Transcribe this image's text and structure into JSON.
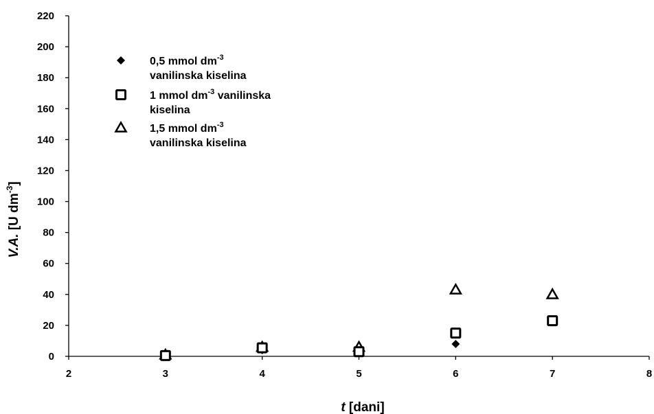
{
  "chart_data": {
    "type": "scatter",
    "xlabel": {
      "italic": "t",
      "rest": " [dani]"
    },
    "ylabel": {
      "italic": "V.A.",
      "rest": " [U dm",
      "sup": "-3",
      "close": "]"
    },
    "xlim": [
      2,
      8
    ],
    "ylim": [
      0,
      220
    ],
    "xticks": [
      2,
      3,
      4,
      5,
      6,
      7,
      8
    ],
    "yticks": [
      0,
      20,
      40,
      60,
      80,
      100,
      120,
      140,
      160,
      180,
      200,
      220
    ],
    "grid": false,
    "legend_position": "top-left",
    "series": [
      {
        "name": "0,5 mmol dm-3 vanilinska kiselina",
        "marker": "diamond",
        "legend_lines": [
          {
            "pre": "0,5 mmol dm",
            "sup": "-3",
            "post": ""
          },
          {
            "pre": "vanilinska kiselina",
            "sup": "",
            "post": ""
          }
        ],
        "x": [
          3,
          4,
          5,
          6,
          7
        ],
        "y": [
          1,
          4,
          3,
          8,
          22
        ]
      },
      {
        "name": "1 mmol dm-3 vanilinska kiselina",
        "marker": "square-open",
        "legend_lines": [
          {
            "pre": "1 mmol dm",
            "sup": "-3",
            "post": " vanilinska"
          },
          {
            "pre": "kiselina",
            "sup": "",
            "post": ""
          }
        ],
        "x": [
          3,
          4,
          5,
          6,
          7
        ],
        "y": [
          0.5,
          5.5,
          3,
          15,
          23
        ]
      },
      {
        "name": "1,5 mmol dm-3 vanilinska kiselina",
        "marker": "triangle-open",
        "legend_lines": [
          {
            "pre": "1,5 mmol dm",
            "sup": "-3",
            "post": ""
          },
          {
            "pre": "vanilinska kiselina",
            "sup": "",
            "post": ""
          }
        ],
        "x": [
          3,
          4,
          5,
          6,
          7
        ],
        "y": [
          1,
          6,
          6,
          43,
          40
        ]
      }
    ]
  }
}
